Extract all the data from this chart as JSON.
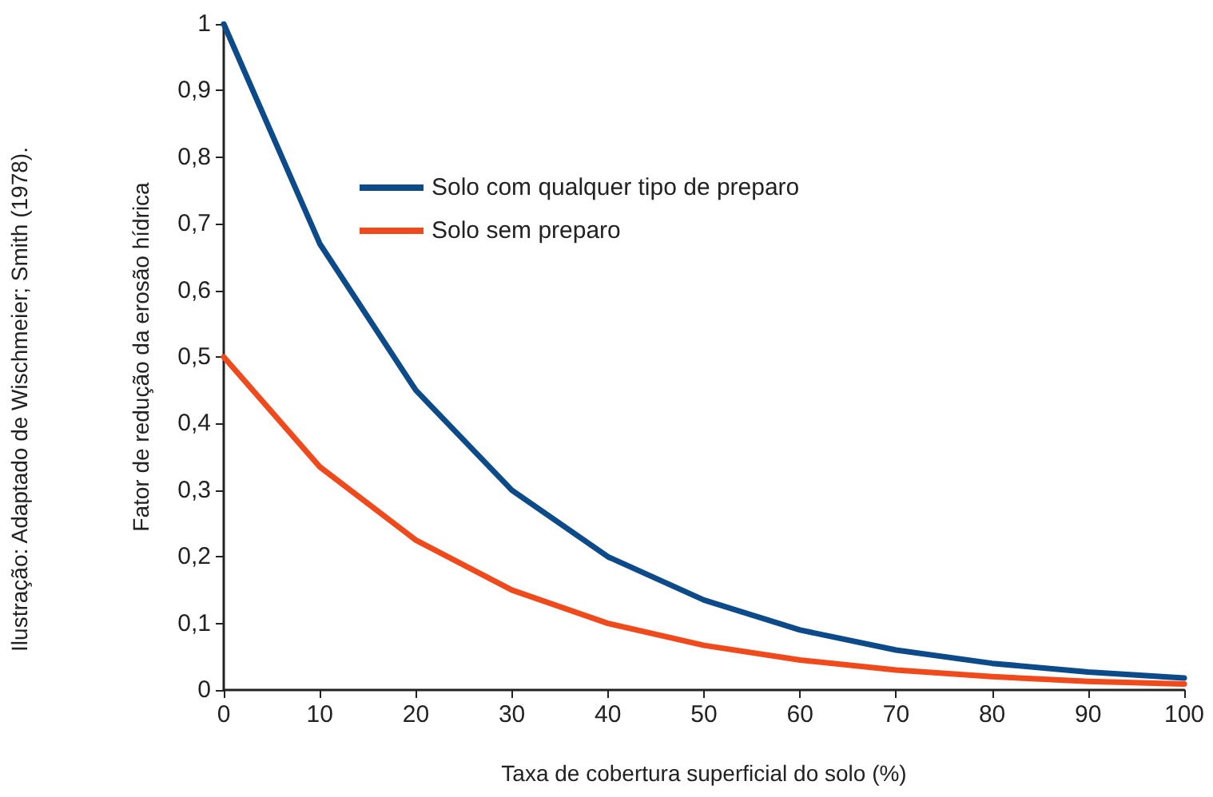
{
  "chart_data": {
    "type": "line",
    "xlabel": "Taxa de cobertura superficial do solo (%)",
    "ylabel": "Fator de redução da erosão hídrica",
    "annotations": [
      "Ilustração: Adaptado de Wischmeier; Smith (1978)."
    ],
    "x": [
      0,
      10,
      20,
      30,
      40,
      50,
      60,
      70,
      80,
      90,
      100
    ],
    "series": [
      {
        "name": "Solo com qualquer tipo de preparo",
        "color": "#0d4a8a",
        "values": [
          1,
          0.67,
          0.45,
          0.3,
          0.2,
          0.135,
          0.09,
          0.06,
          0.04,
          0.027,
          0.018
        ]
      },
      {
        "name": "Solo sem preparo",
        "color": "#f04a1c",
        "values": [
          0.5,
          0.335,
          0.225,
          0.15,
          0.1,
          0.067,
          0.045,
          0.03,
          0.02,
          0.013,
          0.009
        ]
      }
    ],
    "xlim": [
      0,
      100
    ],
    "xticks": [
      0,
      10,
      20,
      30,
      40,
      50,
      60,
      70,
      80,
      90,
      100
    ],
    "ylim": [
      0,
      1
    ],
    "yticks": [
      0,
      {
        "value": 0.1,
        "label": "0,1"
      },
      {
        "value": 0.2,
        "label": "0,2"
      },
      {
        "value": 0.3,
        "label": "0,3"
      },
      {
        "value": 0.4,
        "label": "0,4"
      },
      {
        "value": 0.5,
        "label": "0,5"
      },
      {
        "value": 0.6,
        "label": "0,6"
      },
      {
        "value": 0.7,
        "label": "0,7"
      },
      {
        "value": 0.8,
        "label": "0,8"
      },
      {
        "value": 0.9,
        "label": "0,9"
      },
      1
    ],
    "grid": false,
    "legend": "top",
    "marker": "none",
    "line_style": "solid"
  }
}
